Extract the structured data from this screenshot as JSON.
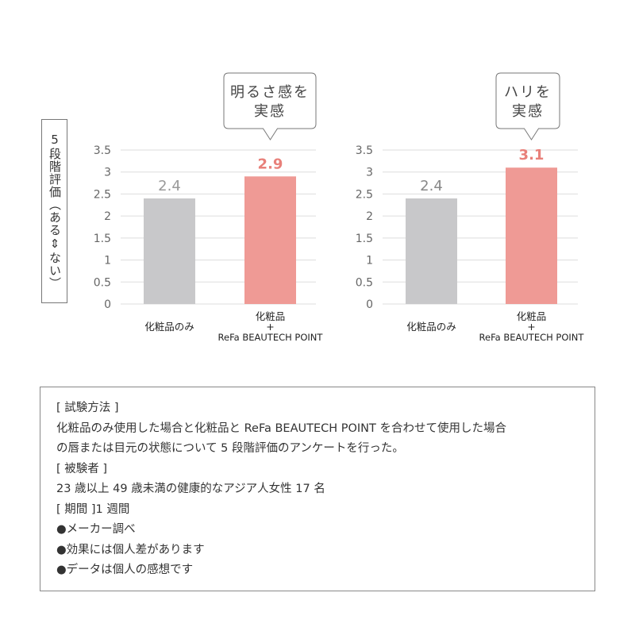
{
  "y_axis_label": "5段階評価（ある⇕ない）",
  "chart_data": [
    {
      "type": "bar",
      "callout": [
        "明るさ感を",
        "実感"
      ],
      "categories": [
        "化粧品のみ",
        "化粧品\n+\nReFa BEAUTECH POINT"
      ],
      "values": [
        2.4,
        2.9
      ],
      "data_labels": [
        "2.4",
        "2.9"
      ],
      "ylim": [
        0,
        3.5
      ],
      "yticks": [
        "0",
        "0.5",
        "1",
        "1.5",
        "2",
        "2.5",
        "3",
        "3.5"
      ],
      "grid": true,
      "colors": [
        "#c8c8ca",
        "#ef9a95"
      ],
      "label_colors": [
        "#999999",
        "#e8807a"
      ]
    },
    {
      "type": "bar",
      "callout": [
        "ハリを",
        "実感"
      ],
      "categories": [
        "化粧品のみ",
        "化粧品\n+\nReFa BEAUTECH POINT"
      ],
      "values": [
        2.4,
        3.1
      ],
      "data_labels": [
        "2.4",
        "3.1"
      ],
      "ylim": [
        0,
        3.5
      ],
      "yticks": [
        "0",
        "0.5",
        "1",
        "1.5",
        "2",
        "2.5",
        "3",
        "3.5"
      ],
      "grid": true,
      "colors": [
        "#c8c8ca",
        "#ef9a95"
      ],
      "label_colors": [
        "#888888",
        "#e8807a"
      ]
    }
  ],
  "notes": [
    "[ 試験方法 ]",
    "化粧品のみ使用した場合と化粧品と ReFa BEAUTECH POINT を合わせて使用した場合",
    "の唇または目元の状態について 5 段階評価のアンケートを行った。",
    "[ 被験者 ]",
    "23 歳以上 49 歳未満の健康的なアジア人女性 17 名",
    "[ 期間 ]1 週間",
    "●メーカー調べ",
    "●効果には個人差があります",
    "●データは個人の感想です"
  ]
}
